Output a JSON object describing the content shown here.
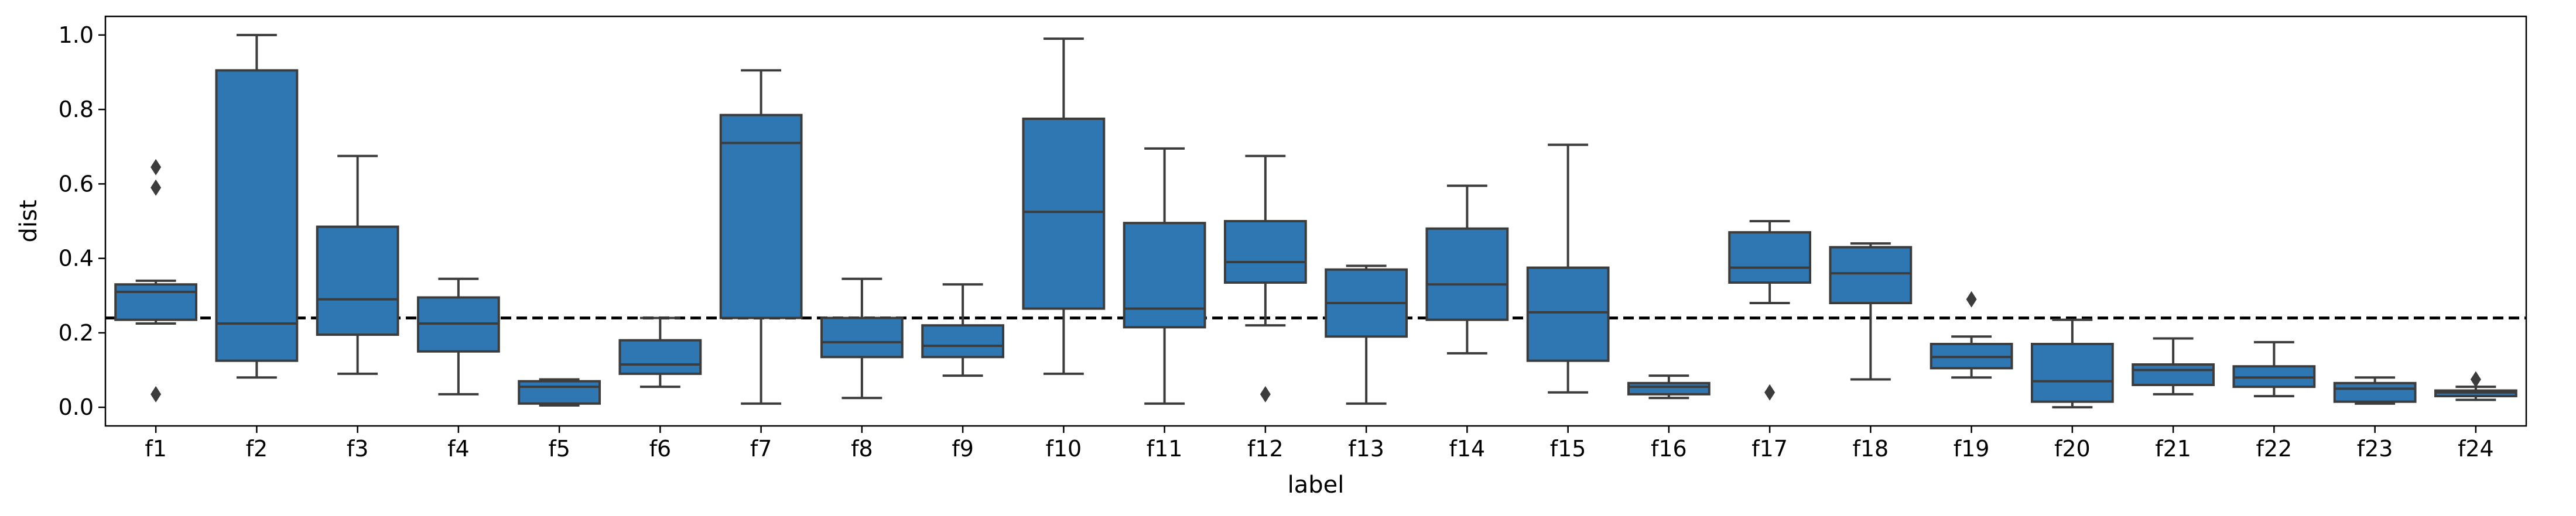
{
  "chart_data": {
    "type": "box",
    "xlabel": "label",
    "ylabel": "dist",
    "ylim": [
      -0.05,
      1.05
    ],
    "yticks": [
      0.0,
      0.2,
      0.4,
      0.6,
      0.8,
      1.0
    ],
    "ytick_labels": [
      "0.0",
      "0.2",
      "0.4",
      "0.6",
      "0.8",
      "1.0"
    ],
    "grid": false,
    "box_color": "#2f77b2",
    "edge_color": "#3c3c3c",
    "reference_line": {
      "y": 0.24,
      "style": "dashed",
      "color": "#000000"
    },
    "categories": [
      "f1",
      "f2",
      "f3",
      "f4",
      "f5",
      "f6",
      "f7",
      "f8",
      "f9",
      "f10",
      "f11",
      "f12",
      "f13",
      "f14",
      "f15",
      "f16",
      "f17",
      "f18",
      "f19",
      "f20",
      "f21",
      "f22",
      "f23",
      "f24"
    ],
    "boxes": [
      {
        "label": "f1",
        "whislo": 0.225,
        "q1": 0.235,
        "med": 0.31,
        "q3": 0.33,
        "whishi": 0.34,
        "fliers": [
          0.035,
          0.59,
          0.645
        ]
      },
      {
        "label": "f2",
        "whislo": 0.08,
        "q1": 0.125,
        "med": 0.225,
        "q3": 0.905,
        "whishi": 1.0,
        "fliers": []
      },
      {
        "label": "f3",
        "whislo": 0.09,
        "q1": 0.195,
        "med": 0.29,
        "q3": 0.485,
        "whishi": 0.675,
        "fliers": []
      },
      {
        "label": "f4",
        "whislo": 0.035,
        "q1": 0.15,
        "med": 0.225,
        "q3": 0.295,
        "whishi": 0.345,
        "fliers": []
      },
      {
        "label": "f5",
        "whislo": 0.005,
        "q1": 0.01,
        "med": 0.055,
        "q3": 0.07,
        "whishi": 0.075,
        "fliers": []
      },
      {
        "label": "f6",
        "whislo": 0.055,
        "q1": 0.09,
        "med": 0.115,
        "q3": 0.18,
        "whishi": 0.24,
        "fliers": []
      },
      {
        "label": "f7",
        "whislo": 0.01,
        "q1": 0.24,
        "med": 0.71,
        "q3": 0.785,
        "whishi": 0.905,
        "fliers": []
      },
      {
        "label": "f8",
        "whislo": 0.025,
        "q1": 0.135,
        "med": 0.175,
        "q3": 0.24,
        "whishi": 0.345,
        "fliers": []
      },
      {
        "label": "f9",
        "whislo": 0.085,
        "q1": 0.135,
        "med": 0.165,
        "q3": 0.22,
        "whishi": 0.33,
        "fliers": []
      },
      {
        "label": "f10",
        "whislo": 0.09,
        "q1": 0.265,
        "med": 0.525,
        "q3": 0.775,
        "whishi": 0.99,
        "fliers": []
      },
      {
        "label": "f11",
        "whislo": 0.01,
        "q1": 0.215,
        "med": 0.265,
        "q3": 0.495,
        "whishi": 0.695,
        "fliers": []
      },
      {
        "label": "f12",
        "whislo": 0.22,
        "q1": 0.335,
        "med": 0.39,
        "q3": 0.5,
        "whishi": 0.675,
        "fliers": [
          0.035
        ]
      },
      {
        "label": "f13",
        "whislo": 0.01,
        "q1": 0.19,
        "med": 0.28,
        "q3": 0.37,
        "whishi": 0.38,
        "fliers": []
      },
      {
        "label": "f14",
        "whislo": 0.145,
        "q1": 0.235,
        "med": 0.33,
        "q3": 0.48,
        "whishi": 0.595,
        "fliers": []
      },
      {
        "label": "f15",
        "whislo": 0.04,
        "q1": 0.125,
        "med": 0.255,
        "q3": 0.375,
        "whishi": 0.705,
        "fliers": []
      },
      {
        "label": "f16",
        "whislo": 0.025,
        "q1": 0.035,
        "med": 0.055,
        "q3": 0.065,
        "whishi": 0.085,
        "fliers": []
      },
      {
        "label": "f17",
        "whislo": 0.28,
        "q1": 0.335,
        "med": 0.375,
        "q3": 0.47,
        "whishi": 0.5,
        "fliers": [
          0.04
        ]
      },
      {
        "label": "f18",
        "whislo": 0.075,
        "q1": 0.28,
        "med": 0.36,
        "q3": 0.43,
        "whishi": 0.44,
        "fliers": []
      },
      {
        "label": "f19",
        "whislo": 0.08,
        "q1": 0.105,
        "med": 0.135,
        "q3": 0.17,
        "whishi": 0.19,
        "fliers": [
          0.29
        ]
      },
      {
        "label": "f20",
        "whislo": 0.0,
        "q1": 0.015,
        "med": 0.07,
        "q3": 0.17,
        "whishi": 0.235,
        "fliers": []
      },
      {
        "label": "f21",
        "whislo": 0.035,
        "q1": 0.06,
        "med": 0.1,
        "q3": 0.115,
        "whishi": 0.185,
        "fliers": []
      },
      {
        "label": "f22",
        "whislo": 0.03,
        "q1": 0.055,
        "med": 0.08,
        "q3": 0.11,
        "whishi": 0.175,
        "fliers": []
      },
      {
        "label": "f23",
        "whislo": 0.01,
        "q1": 0.015,
        "med": 0.05,
        "q3": 0.065,
        "whishi": 0.08,
        "fliers": []
      },
      {
        "label": "f24",
        "whislo": 0.02,
        "q1": 0.03,
        "med": 0.04,
        "q3": 0.045,
        "whishi": 0.055,
        "fliers": [
          0.075
        ]
      }
    ]
  }
}
